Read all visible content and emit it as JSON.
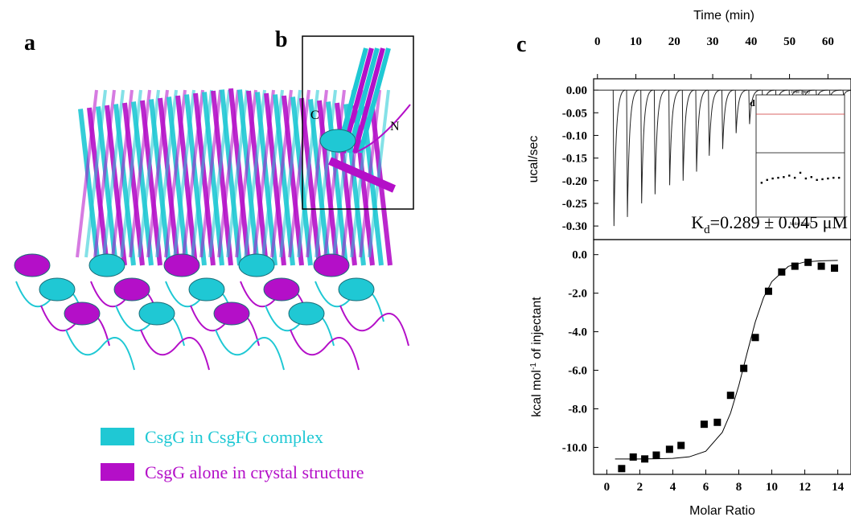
{
  "panel_labels": [
    "a",
    "b",
    "c"
  ],
  "structure_labels": [
    "C",
    "N"
  ],
  "legend": [
    {
      "label": "CsgG in CsgFG complex",
      "color": "#1fc8d4"
    },
    {
      "label": "CsgG alone in crystal structure",
      "color": "#b40fc8"
    }
  ],
  "chart_data": [
    {
      "type": "itc-trace",
      "x_label": "Time (min)",
      "y_label": "ucal/sec",
      "xlim": [
        -1,
        66
      ],
      "xticks": [
        0,
        10,
        20,
        30,
        40,
        50,
        60
      ],
      "ylim": [
        -0.33,
        0.025
      ],
      "yticks": [
        {
          "value": 0,
          "label": "0.00"
        },
        -0.05,
        {
          "value": -0.1,
          "label": "-0.10"
        },
        -0.15,
        {
          "value": -0.2,
          "label": "-0.20"
        },
        -0.25,
        {
          "value": -0.3,
          "label": "-0.30"
        }
      ],
      "x": [
        4.3,
        7.8,
        11.5,
        15.0,
        18.8,
        22.3,
        25.8,
        29.1,
        32.6,
        36.1,
        39.6,
        43.1,
        46.6,
        50.1,
        53.6,
        57.1,
        60.6,
        64.1
      ],
      "values": [
        -0.3,
        -0.28,
        -0.25,
        -0.23,
        -0.21,
        -0.2,
        -0.18,
        -0.145,
        -0.13,
        -0.095,
        -0.075,
        -0.055,
        -0.04,
        -0.03,
        -0.025,
        -0.02,
        -0.015,
        -0.012
      ],
      "color": "#222222",
      "annotation": {
        "main": "K",
        "sub": "d",
        "rest": "=0.289 ± 0.045 μM"
      }
    },
    {
      "type": "scatter",
      "x_label": "Molar Ratio",
      "y_label": {
        "main": "kcal mol",
        "sup": "-1",
        "rest": " of injectant"
      },
      "xlim": [
        -0.8,
        14.8
      ],
      "xticks": [
        0,
        2,
        4,
        6,
        8,
        10,
        12,
        14
      ],
      "ylim": [
        -11.4,
        0.78
      ],
      "yticks": [
        {
          "value": 0,
          "label": "0.0"
        },
        {
          "value": -2,
          "label": "-2.0"
        },
        {
          "value": -4,
          "label": "-4.0"
        },
        {
          "value": -6,
          "label": "-6.0"
        },
        {
          "value": -8,
          "label": "-8.0"
        },
        {
          "value": -10,
          "label": "-10.0"
        }
      ],
      "x": [
        0.9,
        1.6,
        2.3,
        3.0,
        3.8,
        4.5,
        5.9,
        6.7,
        7.5,
        8.3,
        9.0,
        9.8,
        10.6,
        11.4,
        12.2,
        13.0,
        13.8
      ],
      "values": [
        -11.1,
        -10.5,
        -10.6,
        -10.4,
        -10.1,
        -9.9,
        -8.8,
        -8.7,
        -7.3,
        -5.9,
        -4.3,
        -1.9,
        -0.9,
        -0.6,
        -0.4,
        -0.6,
        -0.7
      ],
      "color": "#000000",
      "fit_x": [
        0.5,
        1,
        2,
        3,
        4,
        5,
        6,
        7,
        7.5,
        8,
        8.5,
        9,
        9.5,
        10,
        11,
        12,
        13,
        14
      ],
      "fit_values": [
        -10.6,
        -10.6,
        -10.6,
        -10.59,
        -10.57,
        -10.49,
        -10.2,
        -9.22,
        -8.22,
        -6.79,
        -5.11,
        -3.49,
        -2.23,
        -1.4,
        -0.61,
        -0.38,
        -0.32,
        -0.3
      ]
    },
    {
      "type": "inset",
      "label": "d",
      "top_label": "Time (min)",
      "x_label": "Molar Ratio",
      "xlim": [
        0,
        16
      ],
      "ylim": [
        -0.6,
        0.3
      ],
      "x": [
        1,
        2,
        3,
        4,
        5,
        6,
        7,
        8,
        9,
        10,
        11,
        12,
        13,
        14,
        15
      ],
      "values": [
        -0.12,
        -0.08,
        -0.06,
        -0.05,
        -0.04,
        -0.02,
        -0.05,
        0.02,
        -0.06,
        -0.04,
        -0.08,
        -0.07,
        -0.06,
        -0.05,
        -0.05
      ]
    }
  ]
}
